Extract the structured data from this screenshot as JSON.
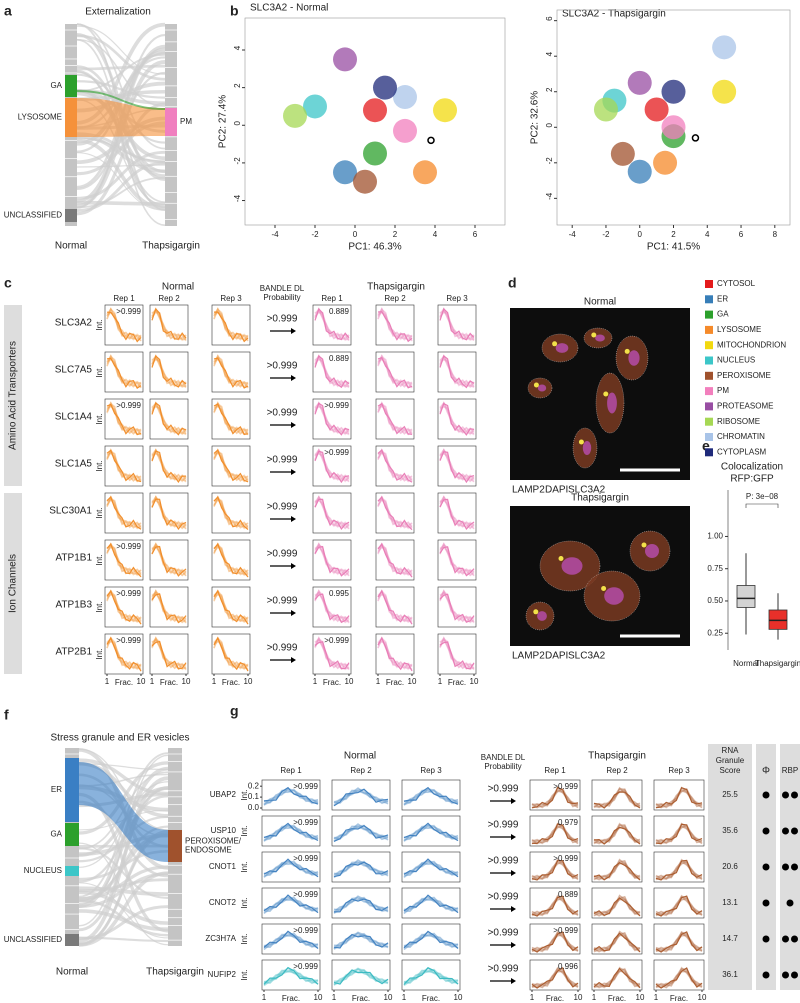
{
  "panel_labels": [
    "a",
    "b",
    "c",
    "d",
    "e",
    "f",
    "g"
  ],
  "organelles": [
    {
      "name": "CYTOSOL",
      "color": "#e41a1c"
    },
    {
      "name": "ER",
      "color": "#377eb8"
    },
    {
      "name": "GA",
      "color": "#2ca02c"
    },
    {
      "name": "LYSOSOME",
      "color": "#f58a2a"
    },
    {
      "name": "MITOCHONDRION",
      "color": "#f2d90f"
    },
    {
      "name": "NUCLEUS",
      "color": "#3cc6c8"
    },
    {
      "name": "PEROXISOME",
      "color": "#a0522d"
    },
    {
      "name": "PM",
      "color": "#f27fbd"
    },
    {
      "name": "PROTEASOME",
      "color": "#984ea3"
    },
    {
      "name": "RIBOSOME",
      "color": "#a6d854"
    },
    {
      "name": "CHROMATIN",
      "color": "#a9c4e8"
    },
    {
      "name": "CYTOPLASM",
      "color": "#1f2a7a"
    }
  ],
  "panel_a": {
    "title": "Externalization",
    "left_label": "Normal",
    "right_label": "Thapsigargin",
    "left_segments": [
      {
        "name": "GA",
        "color": "#2ca02c"
      },
      {
        "name": "LYSOSOME",
        "color": "#f5913a"
      },
      {
        "name": "UNCLASSIFIED",
        "color": "#7a7a7a"
      }
    ],
    "right_segments": [
      {
        "name": "PM",
        "color": "#f07fbf"
      }
    ]
  },
  "panel_b": {
    "plots": [
      {
        "title": "SLC3A2 - Normal",
        "x_label": "PC1: 46.3%",
        "y_label": "PC2: 27.4%",
        "xlim": [
          -5.5,
          7.5
        ],
        "ylim": [
          -5.3,
          5.7
        ],
        "xticks": [
          -4,
          -2,
          0,
          2,
          4,
          6
        ],
        "yticks": [
          -4,
          -2,
          0,
          2,
          4
        ],
        "centroids": {
          "x": [
            1,
            -0.5,
            1,
            3.5,
            4.5,
            -2,
            0.5,
            2.5,
            -0.5,
            -3,
            2.5,
            1.5
          ],
          "y": [
            0.8,
            -2.5,
            -1.5,
            -2.5,
            0.8,
            1,
            -3,
            -0.3,
            3.5,
            0.5,
            1.5,
            2
          ]
        },
        "highlight": {
          "x": 3.8,
          "y": -0.8
        }
      },
      {
        "title": "SLC3A2 - Thapsigargin",
        "x_label": "PC1: 41.5%",
        "y_label": "PC2: 32.6%",
        "xlim": [
          -4.9,
          8.9
        ],
        "ylim": [
          -5.5,
          6.6
        ],
        "xticks": [
          -4,
          -2,
          0,
          2,
          4,
          6,
          8
        ],
        "yticks": [
          -4,
          -2,
          0,
          2,
          4,
          6
        ],
        "centroids": {
          "x": [
            1,
            0,
            2,
            1.5,
            5,
            -1.5,
            -1,
            2,
            0,
            -2,
            5,
            2
          ],
          "y": [
            1,
            -2.5,
            -0.5,
            -2,
            2,
            1.5,
            -1.5,
            0,
            2.5,
            1,
            4.5,
            2
          ]
        },
        "highlight": {
          "x": 3.3,
          "y": -0.6
        }
      }
    ]
  },
  "panel_c": {
    "header_normal": "Normal",
    "header_thapsigargin": "Thapsigargin",
    "bandle_header": [
      "BANDLE DL",
      "Probability"
    ],
    "reps": [
      "Rep 1",
      "Rep 2",
      "Rep 3"
    ],
    "y_label": "Int.",
    "x_label": "Frac.",
    "x_ticks": [
      1,
      10
    ],
    "normal_color": "#f08a24",
    "thapsigargin_color": "#e879b4",
    "groups": [
      {
        "name": "Amino Acid Transporters",
        "rows": [
          {
            "gene": "SLC3A2",
            "normal_label": ">0.999",
            "bandle": ">0.999",
            "thapsigargin_label": "0.889"
          },
          {
            "gene": "SLC7A5",
            "bandle": ">0.999",
            "thapsigargin_label": "0.889"
          },
          {
            "gene": "SLC1A4",
            "normal_label": ">0.999",
            "bandle": ">0.999",
            "thapsigargin_label": ">0.999"
          },
          {
            "gene": "SLC1A5",
            "bandle": ">0.999",
            "thapsigargin_label": ">0.999"
          }
        ]
      },
      {
        "name": "Ion Channels",
        "rows": [
          {
            "gene": "SLC30A1",
            "bandle": ">0.999"
          },
          {
            "gene": "ATP1B1",
            "normal_label": ">0.999",
            "bandle": ">0.999"
          },
          {
            "gene": "ATP1B3",
            "normal_label": ">0.999",
            "bandle": ">0.999",
            "thapsigargin_label": "0.995"
          },
          {
            "gene": "ATP2B1",
            "normal_label": ">0.999",
            "bandle": ">0.999",
            "thapsigargin_label": ">0.999"
          }
        ]
      }
    ]
  },
  "panel_d": {
    "normal_title": "Normal",
    "thapsigargin_title": "Thapsigargin",
    "stains": [
      {
        "name": "LAMP2",
        "color": "#2ca02c"
      },
      {
        "name": "DAPI",
        "color": "#1f5fbf"
      },
      {
        "name": "SLC3A2",
        "color": "#d62728"
      }
    ]
  },
  "panel_e": {
    "title": [
      "Colocalization",
      "RFP:GFP"
    ],
    "p_label": "P: 3e−08",
    "categories": [
      "Normal",
      "Thapsigargin"
    ],
    "colors": [
      "#d3d3d3",
      "#e8302a"
    ],
    "ylim": [
      0.12,
      1.36
    ],
    "yticks": [
      0.25,
      {
        "value": 0.5,
        "label": "0.50"
      },
      0.75,
      {
        "value": 1,
        "label": "1.00"
      }
    ],
    "boxes": [
      {
        "whisker_low": 0.24,
        "q1": 0.45,
        "median": 0.52,
        "q3": 0.62,
        "whisker_high": 0.87
      },
      {
        "whisker_low": 0.2,
        "q1": 0.28,
        "median": 0.35,
        "q3": 0.43,
        "whisker_high": 0.56
      }
    ]
  },
  "panel_f": {
    "title": "Stress granule and ER vesicles",
    "left_label": "Normal",
    "right_label": "Thapsigargin",
    "left_segments": [
      {
        "name": "ER",
        "color": "#3a7fc4"
      },
      {
        "name": "GA",
        "color": "#2ca02c"
      },
      {
        "name": "NUCLEUS",
        "color": "#3cc6c8"
      },
      {
        "name": "UNCLASSIFIED",
        "color": "#7a7a7a"
      }
    ],
    "right_segments": [
      {
        "name": [
          "PEROXISOME/",
          "ENDOSOME"
        ],
        "color": "#a0522d"
      }
    ]
  },
  "panel_g": {
    "header_normal": "Normal",
    "header_thapsigargin": "Thapsigargin",
    "bandle_header": [
      "BANDLE DL",
      "Probability"
    ],
    "reps": [
      "Rep 1",
      "Rep 2",
      "Rep 3"
    ],
    "score_header": [
      "RNA",
      "Granule",
      "Score"
    ],
    "phi_header": "Φ",
    "rbp_header": "RBP",
    "y_label": "Int.",
    "yticks": [
      {
        "value": 0,
        "label": "0.0"
      },
      0.1,
      0.2
    ],
    "x_label": "Frac.",
    "x_ticks": [
      1,
      10
    ],
    "normal_color": "#3d7ebf",
    "thapsigargin_color": "#a9592a",
    "rows": [
      {
        "gene": "UBAP2",
        "normal_label": ">0.999",
        "bandle": ">0.999",
        "thapsigargin_label": ">0.999",
        "score": 25.5,
        "phi": 1,
        "rbp": 2
      },
      {
        "gene": "USP10",
        "normal_label": ">0.999",
        "bandle": ">0.999",
        "thapsigargin_label": "0.979",
        "score": 35.6,
        "phi": 1,
        "rbp": 2
      },
      {
        "gene": "CNOT1",
        "normal_label": ">0.999",
        "bandle": ">0.999",
        "thapsigargin_label": ">0.999",
        "score": 20.6,
        "phi": 1,
        "rbp": 2
      },
      {
        "gene": "CNOT2",
        "normal_label": ">0.999",
        "bandle": ">0.999",
        "thapsigargin_label": "0.889",
        "score": 13.1,
        "phi": 1,
        "rbp": 1
      },
      {
        "gene": "ZC3H7A",
        "normal_label": ">0.999",
        "bandle": ">0.999",
        "thapsigargin_label": ">0.999",
        "score": 14.7,
        "phi": 1,
        "rbp": 2
      },
      {
        "gene": "NUFIP2",
        "normal_label": ">0.999",
        "bandle": ">0.999",
        "thapsigargin_label": "0.996",
        "score": 36.1,
        "phi": 1,
        "rbp": 2,
        "color": "#35b8c0"
      }
    ]
  }
}
